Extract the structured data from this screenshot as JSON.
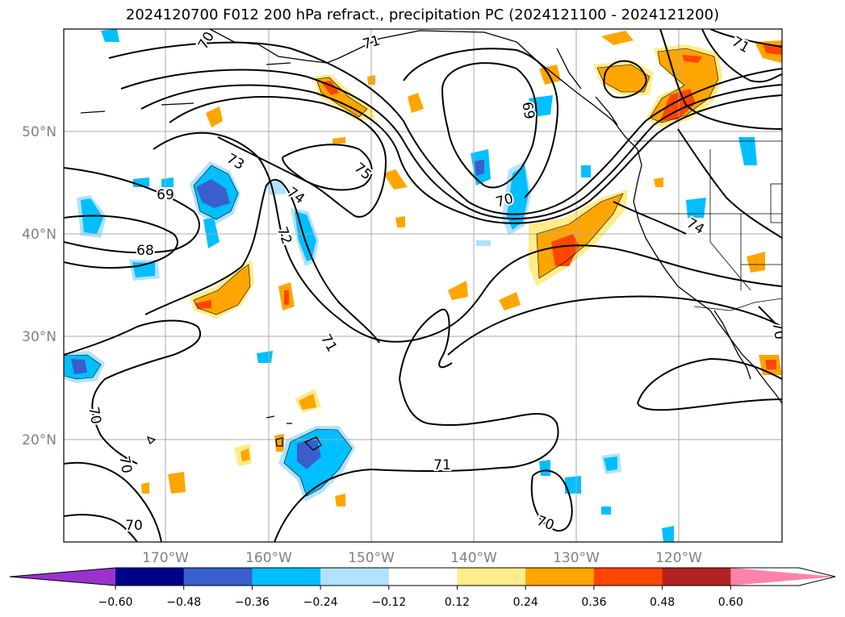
{
  "title": "2024120700 F012 200 hPa refract., precipitation PC (2024121100 - 2024121200)",
  "map": {
    "lon_ticks": [
      "170°W",
      "160°W",
      "150°W",
      "140°W",
      "130°W",
      "120°W"
    ],
    "lat_ticks": [
      "50°N",
      "40°N",
      "30°N",
      "20°N"
    ],
    "contour_labels": [
      {
        "text": "70",
        "rot": -60
      },
      {
        "text": "71",
        "rot": -15
      },
      {
        "text": "69",
        "rot": 80
      },
      {
        "text": "71",
        "rot": 30
      },
      {
        "text": "73",
        "rot": 30
      },
      {
        "text": "75",
        "rot": 40
      },
      {
        "text": "74",
        "rot": 35
      },
      {
        "text": "69",
        "rot": 0
      },
      {
        "text": "72",
        "rot": 70
      },
      {
        "text": "70",
        "rot": -15
      },
      {
        "text": "74",
        "rot": 30
      },
      {
        "text": "68",
        "rot": 0
      },
      {
        "text": "71",
        "rot": 60
      },
      {
        "text": "70",
        "rot": 80
      },
      {
        "text": "70",
        "rot": 80
      },
      {
        "text": "71",
        "rot": 0
      },
      {
        "text": "70",
        "rot": 0
      },
      {
        "text": "70",
        "rot": 20
      },
      {
        "text": "70",
        "rot": 80
      }
    ]
  },
  "colorbar": {
    "colors": [
      "#9a32cd",
      "#00008b",
      "#3a5fcd",
      "#00bfff",
      "#b0e2ff",
      "#ffffff",
      "#ffec8b",
      "#ffa500",
      "#ff4500",
      "#b22222",
      "#ff82ab"
    ],
    "labels": [
      "−0.60",
      "−0.48",
      "−0.36",
      "−0.24",
      "−0.12",
      "0.12",
      "0.24",
      "0.36",
      "0.48",
      "0.60"
    ]
  }
}
